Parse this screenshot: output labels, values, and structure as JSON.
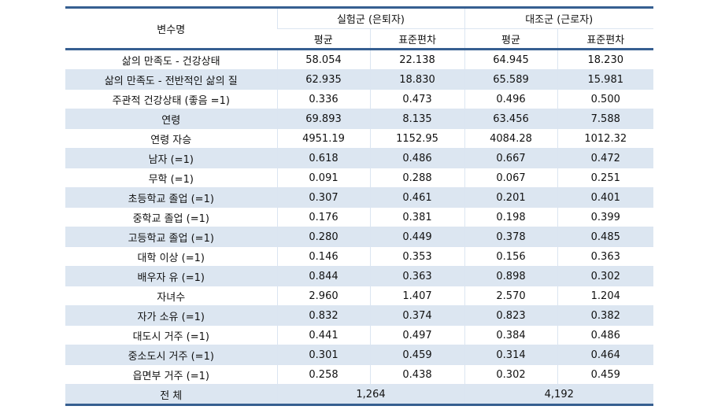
{
  "header": {
    "variable": "변수명",
    "group1": "실험군 (은퇴자)",
    "group2": "대조군 (근로자)",
    "mean": "평균",
    "sd": "표준편차"
  },
  "rows": [
    {
      "label": "삶의 만족도 - 건강상태",
      "v": [
        "58.054",
        "22.138",
        "64.945",
        "18.230"
      ]
    },
    {
      "label": "삶의 만족도 - 전반적인 삶의 질",
      "v": [
        "62.935",
        "18.830",
        "65.589",
        "15.981"
      ]
    },
    {
      "label": "주관적 건강상태 (좋음 =1)",
      "v": [
        "0.336",
        "0.473",
        "0.496",
        "0.500"
      ]
    },
    {
      "label": "연령",
      "v": [
        "69.893",
        "8.135",
        "63.456",
        "7.588"
      ]
    },
    {
      "label": "연령 자승",
      "v": [
        "4951.19",
        "1152.95",
        "4084.28",
        "1012.32"
      ]
    },
    {
      "label": "남자 (=1)",
      "v": [
        "0.618",
        "0.486",
        "0.667",
        "0.472"
      ]
    },
    {
      "label": "무학 (=1)",
      "v": [
        "0.091",
        "0.288",
        "0.067",
        "0.251"
      ]
    },
    {
      "label": "초등학교 졸업 (=1)",
      "v": [
        "0.307",
        "0.461",
        "0.201",
        "0.401"
      ]
    },
    {
      "label": "중학교 졸업 (=1)",
      "v": [
        "0.176",
        "0.381",
        "0.198",
        "0.399"
      ]
    },
    {
      "label": "고등학교 졸업 (=1)",
      "v": [
        "0.280",
        "0.449",
        "0.378",
        "0.485"
      ]
    },
    {
      "label": "대학 이상 (=1)",
      "v": [
        "0.146",
        "0.353",
        "0.156",
        "0.363"
      ]
    },
    {
      "label": "배우자 유 (=1)",
      "v": [
        "0.844",
        "0.363",
        "0.898",
        "0.302"
      ]
    },
    {
      "label": "자녀수",
      "v": [
        "2.960",
        "1.407",
        "2.570",
        "1.204"
      ]
    },
    {
      "label": "자가 소유 (=1)",
      "v": [
        "0.832",
        "0.374",
        "0.823",
        "0.382"
      ]
    },
    {
      "label": "대도시 거주 (=1)",
      "v": [
        "0.441",
        "0.497",
        "0.384",
        "0.486"
      ]
    },
    {
      "label": "중소도시 거주 (=1)",
      "v": [
        "0.301",
        "0.459",
        "0.314",
        "0.464"
      ]
    },
    {
      "label": "읍면부 거주 (=1)",
      "v": [
        "0.258",
        "0.438",
        "0.302",
        "0.459"
      ]
    }
  ],
  "total": {
    "label": "전 체",
    "group1": "1,264",
    "group2": "4,192"
  },
  "colors": {
    "border": "#365f91",
    "shade": "#dce6f1",
    "grid": "#dbe5f1"
  }
}
